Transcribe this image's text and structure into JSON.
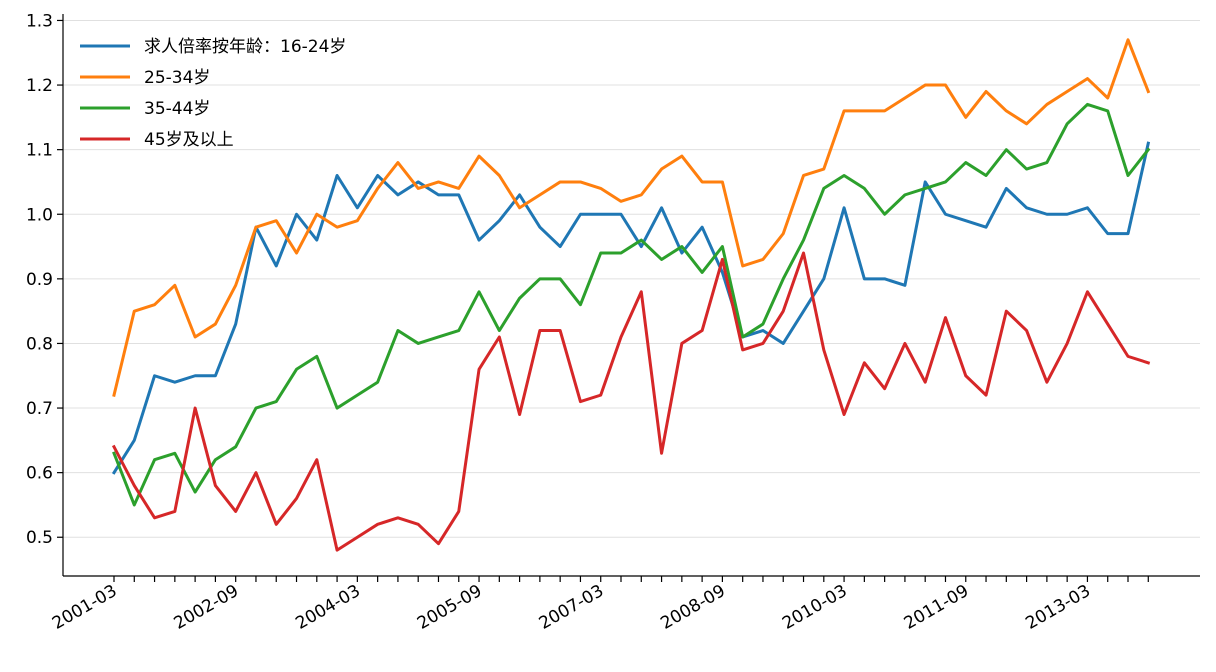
{
  "chart_data": {
    "type": "line",
    "title": "",
    "xlabel": "",
    "ylabel": "",
    "grid": "horizontal",
    "legend_position": "top-left",
    "ylim": [
      0.44,
      1.31
    ],
    "y_ticks": [
      0.5,
      0.6,
      0.7,
      0.8,
      0.9,
      1.0,
      1.1,
      1.2,
      1.3
    ],
    "y_tick_labels": [
      "0.5",
      "0.6",
      "0.7",
      "0.8",
      "0.9",
      "1.0",
      "1.1",
      "1.2",
      "1.3"
    ],
    "x_tick_labels": [
      "2001-03",
      "2002-09",
      "2004-03",
      "2005-09",
      "2007-03",
      "2008-09",
      "2010-03",
      "2011-09",
      "2013-03"
    ],
    "x": [
      "2001-03",
      "2001-06",
      "2001-09",
      "2001-12",
      "2002-03",
      "2002-06",
      "2002-09",
      "2002-12",
      "2003-03",
      "2003-06",
      "2003-09",
      "2003-12",
      "2004-03",
      "2004-06",
      "2004-09",
      "2004-12",
      "2005-03",
      "2005-06",
      "2005-09",
      "2005-12",
      "2006-03",
      "2006-06",
      "2006-09",
      "2006-12",
      "2007-03",
      "2007-06",
      "2007-09",
      "2007-12",
      "2008-03",
      "2008-06",
      "2008-09",
      "2008-12",
      "2009-03",
      "2009-06",
      "2009-09",
      "2009-12",
      "2010-03",
      "2010-06",
      "2010-09",
      "2010-12",
      "2011-03",
      "2011-06",
      "2011-09",
      "2011-12",
      "2012-03",
      "2012-06",
      "2012-09",
      "2012-12",
      "2013-03",
      "2013-06",
      "2013-09",
      "2013-12"
    ],
    "series": [
      {
        "name": "求人倍率按年龄：16-24岁",
        "color": "#1f77b4",
        "values": [
          0.6,
          0.65,
          0.75,
          0.74,
          0.75,
          0.75,
          0.83,
          0.98,
          0.92,
          1.0,
          0.96,
          1.06,
          1.01,
          1.06,
          1.03,
          1.05,
          1.03,
          1.03,
          0.96,
          0.99,
          1.03,
          0.98,
          0.95,
          1.0,
          1.0,
          1.0,
          0.95,
          1.01,
          0.94,
          0.98,
          0.91,
          0.81,
          0.82,
          0.8,
          0.85,
          0.9,
          1.01,
          0.9,
          0.9,
          0.89,
          1.05,
          1.0,
          0.99,
          0.98,
          1.04,
          1.01,
          1.0,
          1.0,
          1.01,
          0.97,
          0.97,
          1.11
        ]
      },
      {
        "name": "25-34岁",
        "color": "#ff7f0e",
        "values": [
          0.72,
          0.85,
          0.86,
          0.89,
          0.81,
          0.83,
          0.89,
          0.98,
          0.99,
          0.94,
          1.0,
          0.98,
          0.99,
          1.04,
          1.08,
          1.04,
          1.05,
          1.04,
          1.09,
          1.06,
          1.01,
          1.03,
          1.05,
          1.05,
          1.04,
          1.02,
          1.03,
          1.07,
          1.09,
          1.05,
          1.05,
          0.92,
          0.93,
          0.97,
          1.06,
          1.07,
          1.16,
          1.16,
          1.16,
          1.18,
          1.2,
          1.2,
          1.15,
          1.19,
          1.16,
          1.14,
          1.17,
          1.19,
          1.21,
          1.18,
          1.27,
          1.19
        ]
      },
      {
        "name": "35-44岁",
        "color": "#2ca02c",
        "values": [
          0.63,
          0.55,
          0.62,
          0.63,
          0.57,
          0.62,
          0.64,
          0.7,
          0.71,
          0.76,
          0.78,
          0.7,
          0.72,
          0.74,
          0.82,
          0.8,
          0.81,
          0.82,
          0.88,
          0.82,
          0.87,
          0.9,
          0.9,
          0.86,
          0.94,
          0.94,
          0.96,
          0.93,
          0.95,
          0.91,
          0.95,
          0.81,
          0.83,
          0.9,
          0.96,
          1.04,
          1.06,
          1.04,
          1.0,
          1.03,
          1.04,
          1.05,
          1.08,
          1.06,
          1.1,
          1.07,
          1.08,
          1.14,
          1.17,
          1.16,
          1.06,
          1.1
        ]
      },
      {
        "name": "45岁及以上",
        "color": "#d62728",
        "values": [
          0.64,
          0.58,
          0.53,
          0.54,
          0.7,
          0.58,
          0.54,
          0.6,
          0.52,
          0.56,
          0.62,
          0.48,
          0.5,
          0.52,
          0.53,
          0.52,
          0.49,
          0.54,
          0.76,
          0.81,
          0.69,
          0.82,
          0.82,
          0.71,
          0.72,
          0.81,
          0.88,
          0.63,
          0.8,
          0.82,
          0.93,
          0.79,
          0.8,
          0.85,
          0.94,
          0.79,
          0.69,
          0.77,
          0.73,
          0.8,
          0.74,
          0.84,
          0.75,
          0.72,
          0.85,
          0.82,
          0.74,
          0.8,
          0.88,
          0.83,
          0.78,
          0.77
        ]
      }
    ]
  }
}
